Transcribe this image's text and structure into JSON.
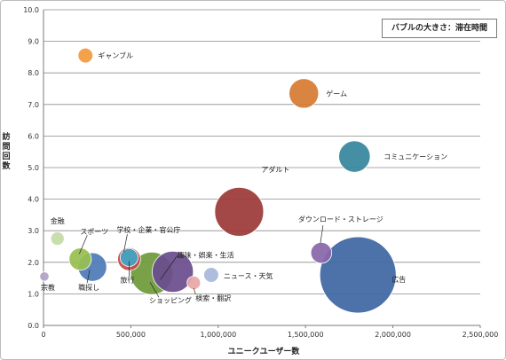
{
  "chart_data": {
    "type": "bubble",
    "note": "バブルの大きさ：滞在時間",
    "xlabel": "ユニークユーザー数",
    "ylabel": "訪問回数",
    "xlim": [
      0,
      2500000
    ],
    "ylim": [
      0,
      10
    ],
    "x_ticks": [
      "0",
      "500,000",
      "1,000,000",
      "1,500,000",
      "2,000,000",
      "2,500,000"
    ],
    "y_ticks": [
      "0.0",
      "1.0",
      "2.0",
      "3.0",
      "4.0",
      "5.0",
      "6.0",
      "7.0",
      "8.0",
      "9.0",
      "10.0"
    ],
    "grid": "horizontal",
    "points": [
      {
        "label": "広告",
        "x": 1800000,
        "y": 1.6,
        "size": 100,
        "color": "#3F66A2"
      },
      {
        "label": "アダルト",
        "x": 1120000,
        "y": 3.6,
        "size": 41,
        "color": "#9C3A39"
      },
      {
        "label": "ショッピング",
        "x": 620000,
        "y": 1.65,
        "size": 31,
        "color": "#6E9A3A"
      },
      {
        "label": "趣味・娯楽・生活",
        "x": 740000,
        "y": 1.7,
        "size": 29,
        "color": "#6B4E8E"
      },
      {
        "label": "コミュニケーション",
        "x": 1780000,
        "y": 5.35,
        "size": 17,
        "color": "#37879E"
      },
      {
        "label": "ゲーム",
        "x": 1490000,
        "y": 7.35,
        "size": 15,
        "color": "#D77B34"
      },
      {
        "label": "職探し",
        "x": 280000,
        "y": 1.85,
        "size": 14,
        "color": "#4F7BB8"
      },
      {
        "label": "学校・企業・官公庁",
        "x": 490000,
        "y": 2.1,
        "size": 9,
        "color": "#C84A47"
      },
      {
        "label": "スポーツ",
        "x": 210000,
        "y": 2.1,
        "size": 8.5,
        "color": "#98BF52"
      },
      {
        "label": "ダウンロード・ストレージ",
        "x": 1590000,
        "y": 2.3,
        "size": 7.5,
        "color": "#8A66AB"
      },
      {
        "label": "旅行",
        "x": 490000,
        "y": 2.15,
        "size": 5.5,
        "color": "#3FA5C4"
      },
      {
        "label": "ギャンブル",
        "x": 240000,
        "y": 8.55,
        "size": 3.8,
        "color": "#F39A3E"
      },
      {
        "label": "ニュース・天気",
        "x": 960000,
        "y": 1.6,
        "size": 3.8,
        "color": "#A8B8DC"
      },
      {
        "label": "金融",
        "x": 80000,
        "y": 2.75,
        "size": 3.1,
        "color": "#C5DAA8"
      },
      {
        "label": "検索・翻訳",
        "x": 860000,
        "y": 1.35,
        "size": 3.1,
        "color": "#E7A8A5"
      },
      {
        "label": "宗教",
        "x": 5000,
        "y": 1.55,
        "size": 1.5,
        "color": "#B3A4C8"
      }
    ]
  }
}
